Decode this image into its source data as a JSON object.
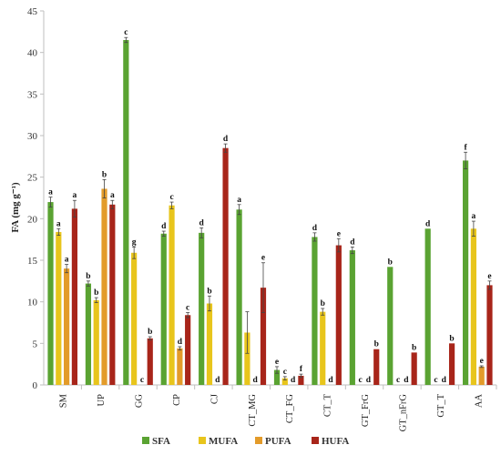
{
  "chart_data": {
    "type": "bar",
    "title": "",
    "ylabel": "FA (mg g⁻¹)",
    "xlabel": "",
    "ylim": [
      0,
      45
    ],
    "yticks": [
      0,
      5,
      10,
      15,
      20,
      25,
      30,
      35,
      40,
      45
    ],
    "grid": false,
    "legend_position": "bottom",
    "categories": [
      "SM",
      "UP",
      "GG",
      "CP",
      "CJ",
      "CT_MG",
      "CT_FG",
      "CT_T",
      "GT_FrG",
      "GT_nFrG",
      "GT_T",
      "AA"
    ],
    "series": [
      {
        "name": "SFA",
        "color": "#5aa332",
        "values": [
          22.0,
          12.2,
          41.5,
          18.2,
          18.3,
          21.1,
          1.8,
          17.8,
          16.2,
          14.2,
          18.8,
          27.0
        ],
        "errors": [
          0.6,
          0.3,
          0.3,
          0.3,
          0.6,
          0.6,
          0.4,
          0.5,
          0.4,
          0.0,
          0.0,
          1.0
        ],
        "labels": [
          "a",
          "b",
          "c",
          "d",
          "d",
          "a",
          "e",
          "d",
          "d",
          "b",
          "d",
          "f"
        ]
      },
      {
        "name": "MUFA",
        "color": "#e8c51c",
        "values": [
          18.4,
          10.2,
          15.9,
          21.6,
          9.8,
          6.3,
          0.8,
          8.8,
          0.0,
          0.0,
          0.0,
          18.8
        ],
        "errors": [
          0.4,
          0.3,
          0.7,
          0.4,
          0.9,
          2.5,
          0.2,
          0.4,
          0.0,
          0.0,
          0.0,
          0.9
        ],
        "labels": [
          "a",
          "b",
          "g",
          "c",
          "b",
          "",
          "c",
          "b",
          "c",
          "c",
          "c",
          "a"
        ]
      },
      {
        "name": "PUFA",
        "color": "#e39b2a",
        "values": [
          14.0,
          23.6,
          0.0,
          4.4,
          0.0,
          0.0,
          0.0,
          0.0,
          0.0,
          0.0,
          0.0,
          2.2
        ],
        "errors": [
          0.5,
          1.1,
          0.0,
          0.2,
          0.0,
          0.0,
          0.0,
          0.0,
          0.0,
          0.0,
          0.0,
          0.1
        ],
        "labels": [
          "a",
          "b",
          "c",
          "d",
          "d",
          "d",
          "d",
          "d",
          "d",
          "d",
          "d",
          "e"
        ]
      },
      {
        "name": "HUFA",
        "color": "#a8251a",
        "values": [
          21.2,
          21.7,
          5.6,
          8.4,
          28.5,
          11.7,
          1.1,
          16.8,
          4.3,
          3.9,
          5.0,
          12.0
        ],
        "errors": [
          1.0,
          0.5,
          0.2,
          0.3,
          0.5,
          3.0,
          0.2,
          0.8,
          0.0,
          0.0,
          0.0,
          0.5
        ],
        "labels": [
          "a",
          "a",
          "b",
          "c",
          "d",
          "e",
          "f",
          "e",
          "b",
          "b",
          "b",
          "e"
        ]
      }
    ]
  }
}
